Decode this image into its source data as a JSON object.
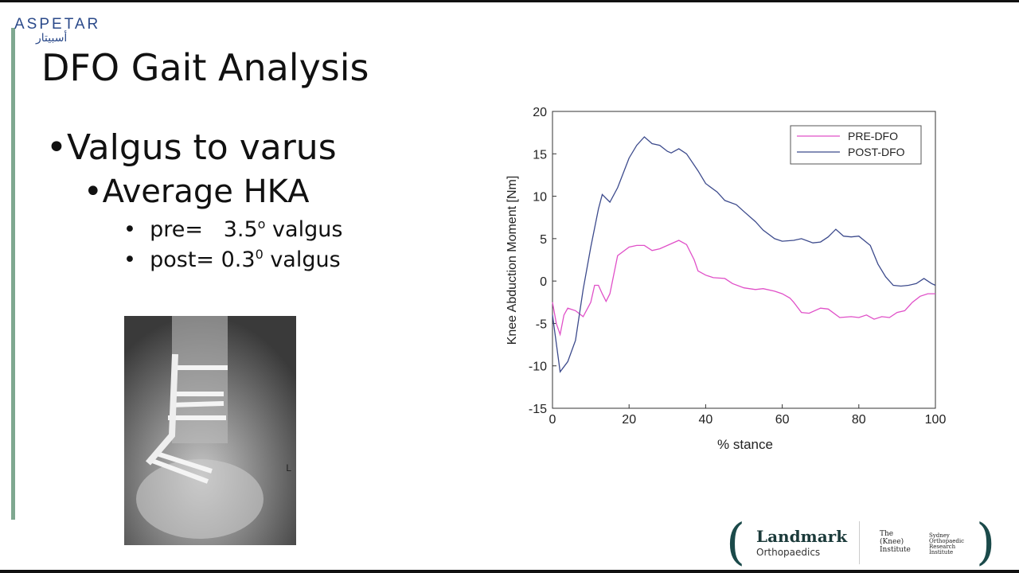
{
  "logo": {
    "name": "ASPETAR",
    "arabic": "أسبيتار"
  },
  "title": "DFO Gait Analysis",
  "bullets": [
    {
      "text": "Valgus to varus"
    },
    {
      "text": "Average HKA"
    },
    {
      "text": "pre=   3.5",
      "sup": "o",
      "after": " valgus"
    },
    {
      "text": "post= 0.3",
      "sup": "0",
      "after": " valgus"
    }
  ],
  "xray": {
    "marker": "L"
  },
  "footer": {
    "brand": "Landmark",
    "brand_sub": "Orthopaedics",
    "knee": [
      "The",
      "(Knee)",
      "Institute"
    ],
    "sori": [
      "Sydney",
      "Orthopaedic",
      "Research",
      "Institute"
    ]
  },
  "chart_data": {
    "type": "line",
    "xlabel": "% stance",
    "ylabel": "Knee Abduction Moment [Nm]",
    "xlim": [
      0,
      100
    ],
    "ylim": [
      -15,
      20
    ],
    "xticks": [
      0,
      20,
      40,
      60,
      80,
      100
    ],
    "yticks": [
      -15,
      -10,
      -5,
      0,
      5,
      10,
      15,
      20
    ],
    "legend": "upper right",
    "series": [
      {
        "name": "PRE-DFO",
        "color": "#e050c8",
        "x": [
          0,
          1,
          2,
          3,
          4,
          6,
          8,
          10,
          11,
          12,
          13,
          14,
          15,
          17,
          20,
          22,
          24,
          26,
          28,
          30,
          32,
          33,
          35,
          37,
          38,
          40,
          42,
          45,
          47,
          50,
          53,
          55,
          58,
          60,
          62,
          63,
          65,
          67,
          70,
          72,
          75,
          78,
          80,
          82,
          84,
          86,
          88,
          90,
          92,
          94,
          96,
          98,
          100
        ],
        "values": [
          -2.5,
          -5,
          -6.3,
          -4,
          -3.2,
          -3.5,
          -4.2,
          -2.5,
          -0.5,
          -0.5,
          -1.5,
          -2.4,
          -1.5,
          3,
          4,
          4.2,
          4.2,
          3.6,
          3.8,
          4.2,
          4.6,
          4.8,
          4.3,
          2.5,
          1.2,
          0.7,
          0.4,
          0.3,
          -0.3,
          -0.8,
          -1,
          -0.9,
          -1.2,
          -1.5,
          -2,
          -2.5,
          -3.7,
          -3.8,
          -3.2,
          -3.3,
          -4.3,
          -4.2,
          -4.3,
          -4,
          -4.5,
          -4.2,
          -4.3,
          -3.7,
          -3.5,
          -2.5,
          -1.8,
          -1.5,
          -1.5
        ]
      },
      {
        "name": "POST-DFO",
        "color": "#3c4a8c",
        "x": [
          0,
          2,
          4,
          6,
          8,
          10,
          12,
          13,
          15,
          17,
          20,
          22,
          24,
          26,
          28,
          30,
          31,
          33,
          35,
          38,
          40,
          43,
          45,
          48,
          50,
          53,
          55,
          58,
          60,
          63,
          65,
          68,
          70,
          72,
          74,
          76,
          78,
          80,
          83,
          85,
          87,
          89,
          91,
          93,
          95,
          97,
          99,
          100
        ],
        "values": [
          -4,
          -10.7,
          -9.5,
          -7,
          -1,
          4,
          8.5,
          10.2,
          9.3,
          11,
          14.5,
          16,
          17,
          16.2,
          16,
          15.3,
          15.1,
          15.6,
          15,
          13,
          11.5,
          10.5,
          9.5,
          9,
          8.2,
          7,
          6,
          5,
          4.7,
          4.8,
          5,
          4.5,
          4.6,
          5.2,
          6.1,
          5.3,
          5.2,
          5.3,
          4.2,
          2,
          0.5,
          -0.5,
          -0.6,
          -0.5,
          -0.3,
          0.3,
          -0.3,
          -0.5
        ]
      }
    ]
  }
}
